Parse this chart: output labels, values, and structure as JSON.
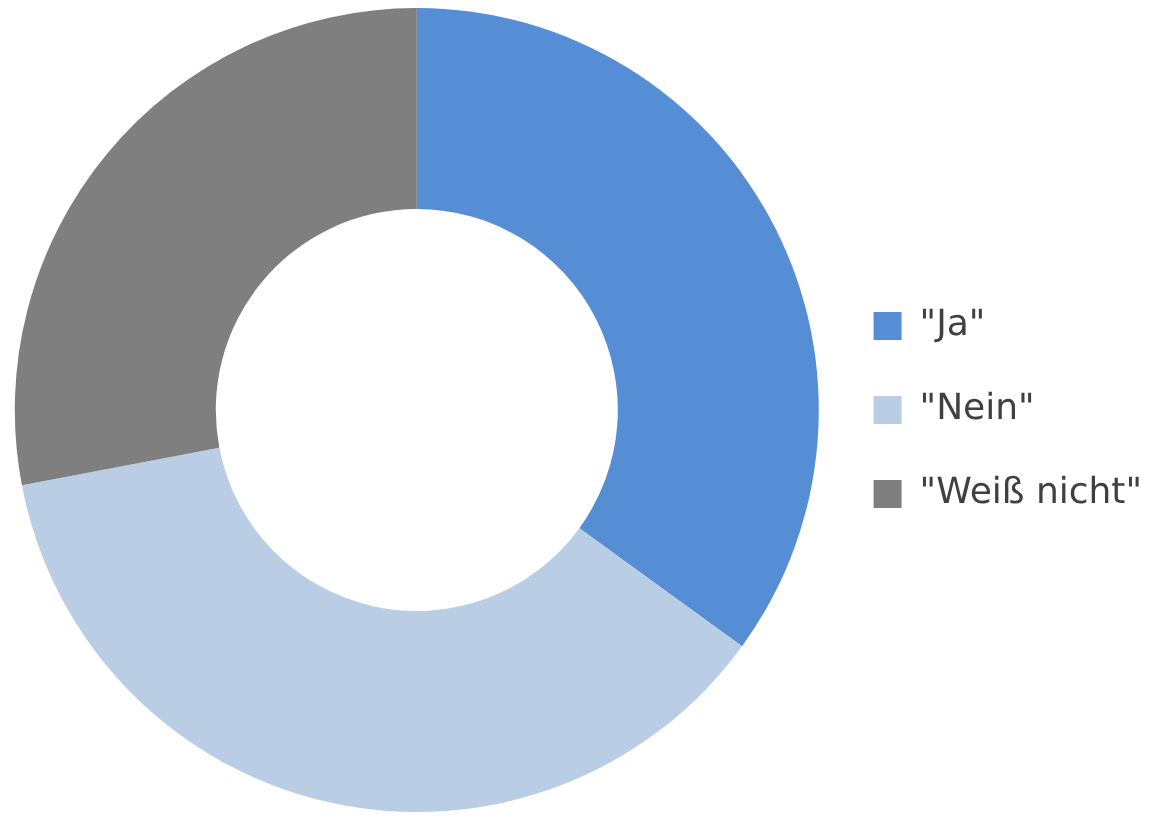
{
  "chart_data": {
    "type": "donut",
    "categories": [
      "\"Ja\"",
      "\"Nein\"",
      "\"Weiß nicht\""
    ],
    "values": [
      35,
      37,
      28
    ],
    "colors": [
      "#558ed5",
      "#b9cde5",
      "#7f7f7f"
    ],
    "legend": "right"
  }
}
